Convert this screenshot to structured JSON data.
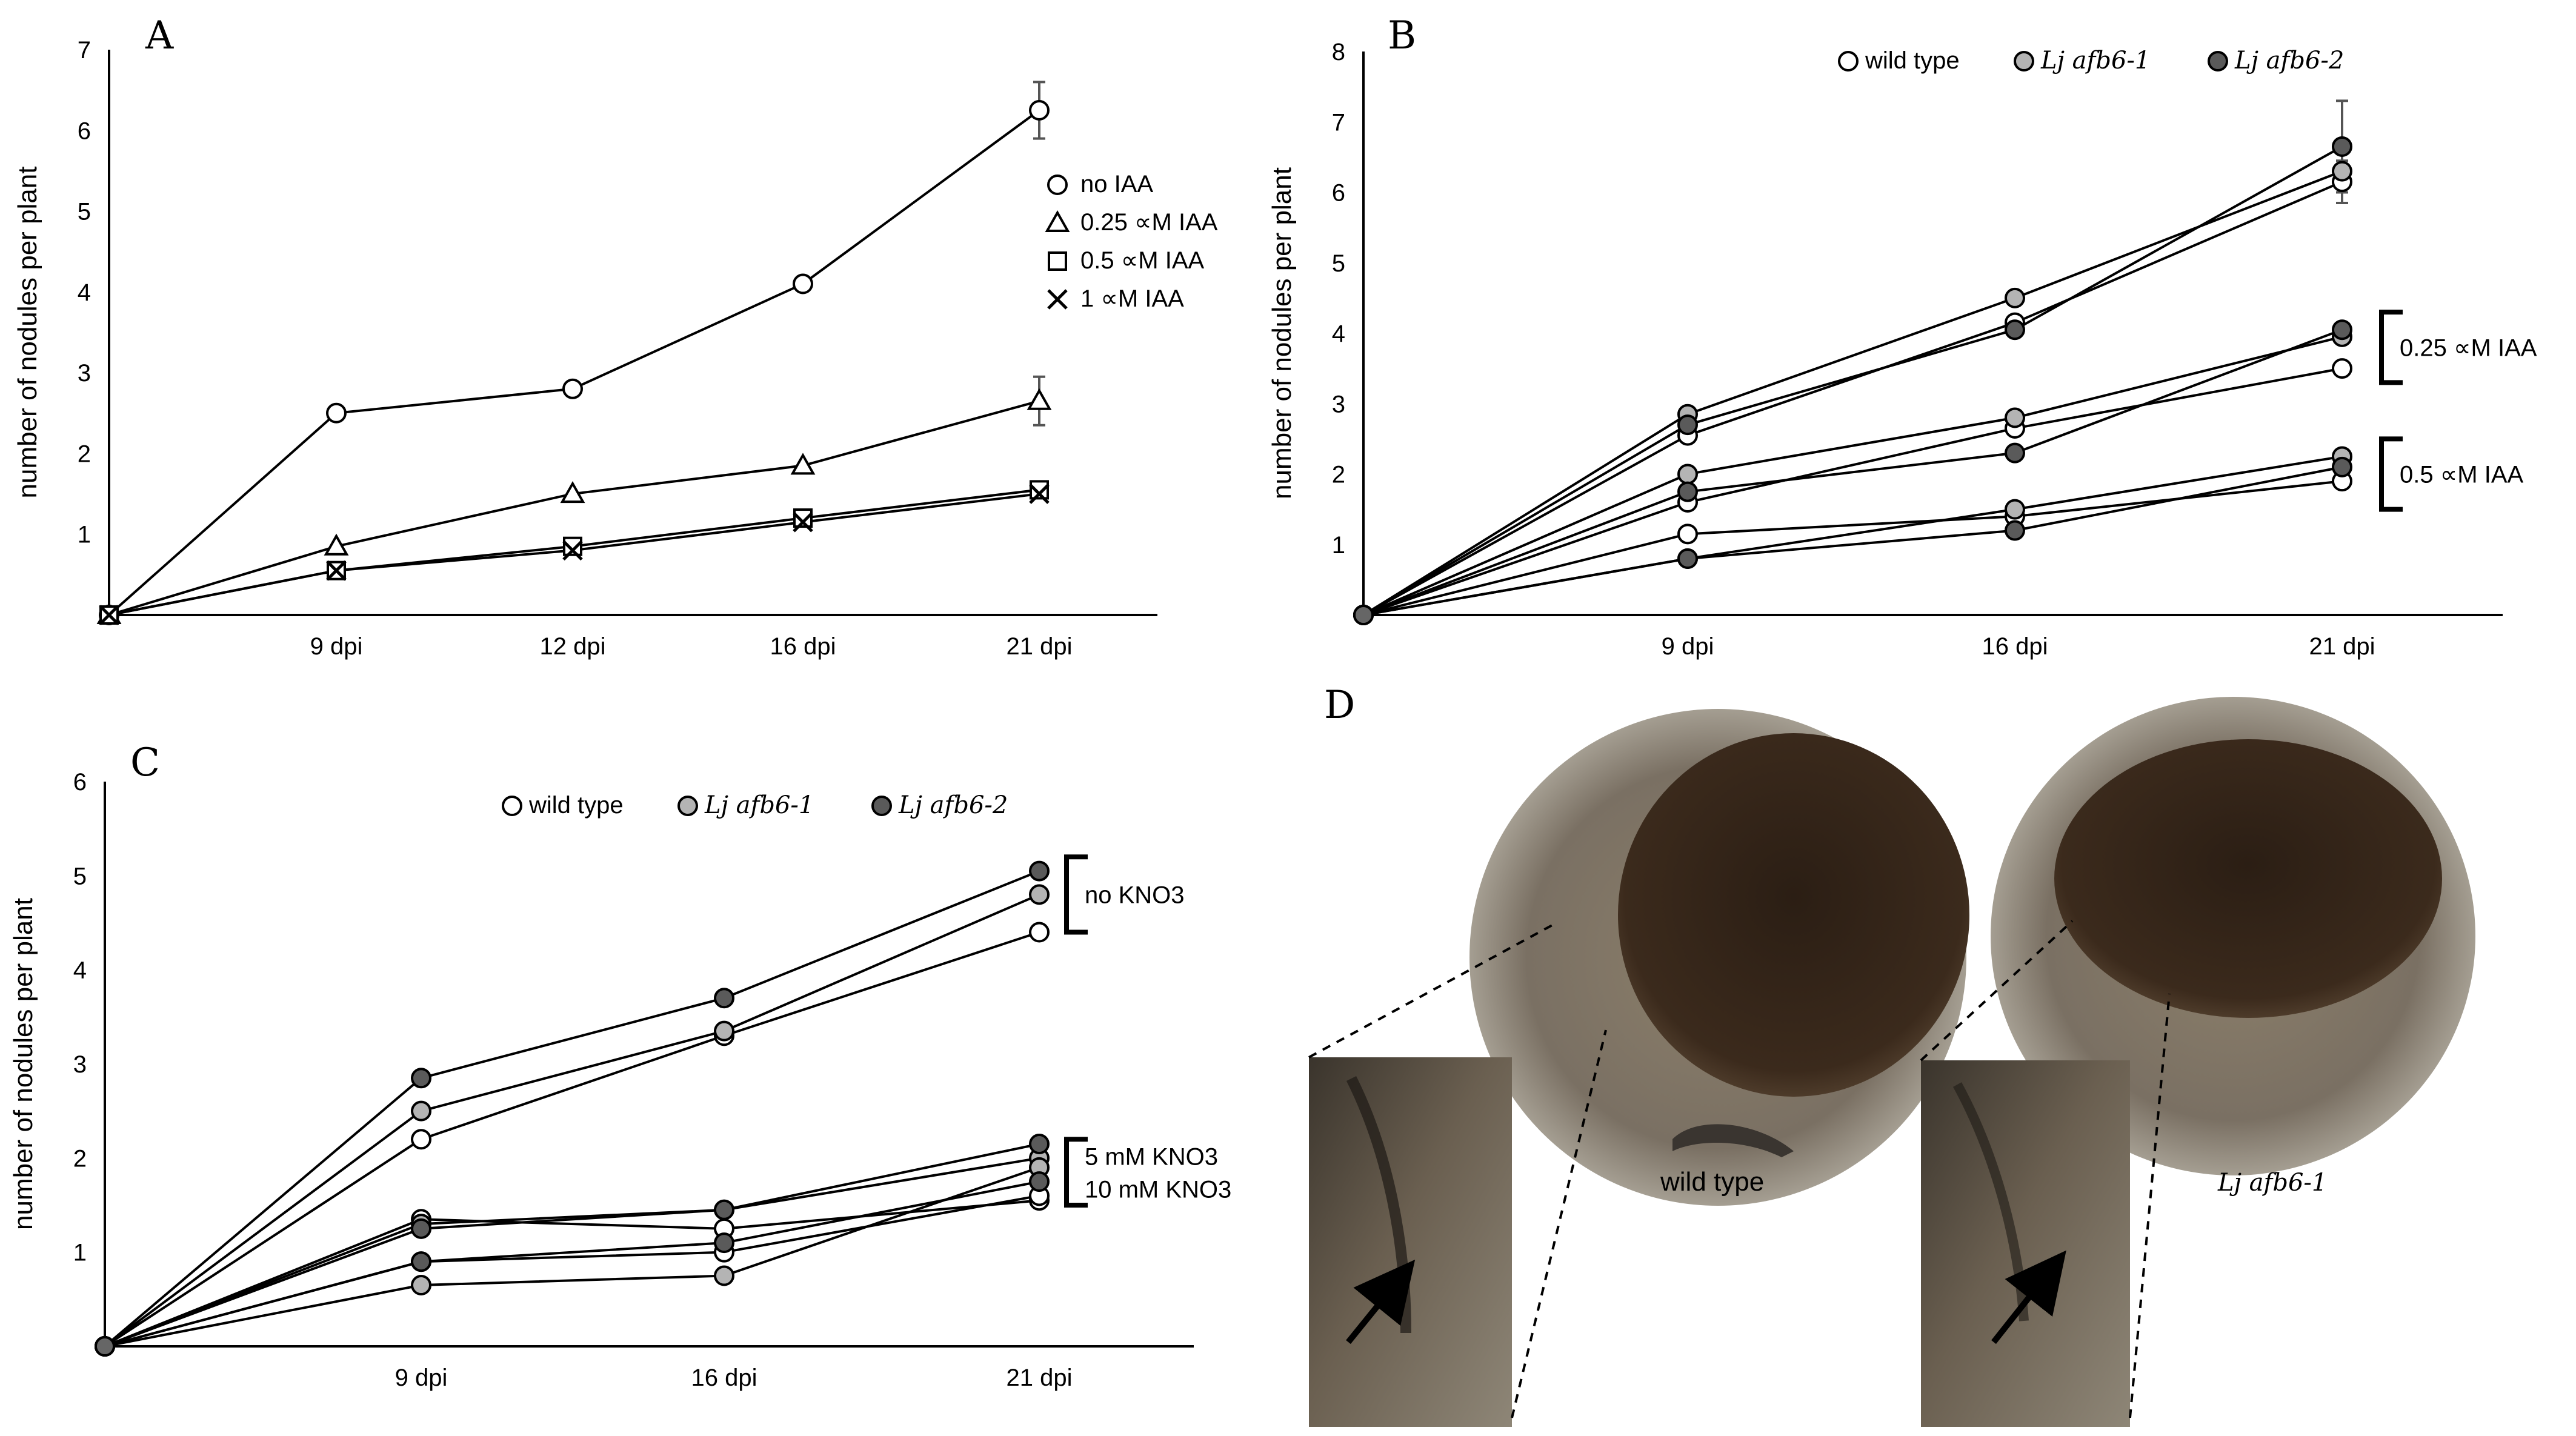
{
  "figure": {
    "panels": {
      "A": "A",
      "B": "B",
      "C": "C",
      "D": "D"
    },
    "captions": {
      "wild_type": "wild type",
      "mutant": "Lj afb6-1"
    }
  },
  "chart_data": [
    {
      "id": "A",
      "type": "line",
      "ylabel": "number of nodules per plant",
      "ylim": [
        0,
        7
      ],
      "yticks": [
        1,
        2,
        3,
        4,
        5,
        6,
        7
      ],
      "x": [
        0,
        9,
        12,
        16,
        21
      ],
      "xticklabels": [
        "9 dpi",
        "12 dpi",
        "16 dpi",
        "21 dpi"
      ],
      "series": [
        {
          "name": "no IAA",
          "marker": "circle",
          "values": [
            0,
            2.5,
            2.8,
            4.1,
            6.25
          ],
          "err": [
            0,
            0,
            0,
            0,
            0.35
          ]
        },
        {
          "name": "0.25 ∝M IAA",
          "marker": "triangle",
          "values": [
            0,
            0.85,
            1.5,
            1.85,
            2.65
          ],
          "err": [
            0,
            0,
            0,
            0,
            0.3
          ]
        },
        {
          "name": "0.5 ∝M IAA",
          "marker": "square",
          "values": [
            0,
            0.55,
            0.85,
            1.2,
            1.55
          ],
          "err": [
            0,
            0,
            0,
            0,
            0
          ]
        },
        {
          "name": "1 ∝M IAA",
          "marker": "x",
          "values": [
            0,
            0.55,
            0.8,
            1.15,
            1.5
          ],
          "err": [
            0,
            0,
            0,
            0,
            0
          ]
        }
      ]
    },
    {
      "id": "B",
      "type": "line",
      "ylabel": "number of nodules per plant",
      "ylim": [
        0,
        8
      ],
      "yticks": [
        1,
        2,
        3,
        4,
        5,
        6,
        7,
        8
      ],
      "x": [
        0,
        9,
        16,
        21
      ],
      "xticklabels": [
        "9 dpi",
        "16 dpi",
        "21 dpi"
      ],
      "legend": [
        {
          "name": "wild type",
          "fill": "#ffffff"
        },
        {
          "name": "Lj afb6-1",
          "fill": "#b4b4b4",
          "italic": true
        },
        {
          "name": "Lj afb6-2",
          "fill": "#5a5a5a",
          "italic": true
        }
      ],
      "brackets": [
        {
          "label": "0.25 ∝M IAA",
          "from": 3.3,
          "to": 4.3
        },
        {
          "label": "0.5 ∝M IAA",
          "from": 1.5,
          "to": 2.5
        }
      ],
      "series": [
        {
          "name": "wild type, no IAA",
          "fill": "#ffffff",
          "values": [
            0,
            2.55,
            4.15,
            6.15
          ],
          "err": 0.3
        },
        {
          "name": "Lj afb6-1, no IAA",
          "fill": "#b4b4b4",
          "values": [
            0,
            2.85,
            4.5,
            6.3
          ],
          "err": 0
        },
        {
          "name": "Lj afb6-2, no IAA",
          "fill": "#5a5a5a",
          "values": [
            0,
            2.7,
            4.05,
            6.65
          ],
          "err": 0.65
        },
        {
          "name": "wild type, 0.25 µM IAA",
          "fill": "#ffffff",
          "values": [
            0,
            1.6,
            2.65,
            3.5
          ]
        },
        {
          "name": "Lj afb6-1, 0.25 µM IAA",
          "fill": "#b4b4b4",
          "values": [
            0,
            2.0,
            2.8,
            3.95
          ]
        },
        {
          "name": "Lj afb6-2, 0.25 µM IAA",
          "fill": "#5a5a5a",
          "values": [
            0,
            1.75,
            2.3,
            4.05
          ]
        },
        {
          "name": "wild type, 0.5 µM IAA",
          "fill": "#ffffff",
          "values": [
            0,
            1.15,
            1.4,
            1.9
          ]
        },
        {
          "name": "Lj afb6-1, 0.5 µM IAA",
          "fill": "#b4b4b4",
          "values": [
            0,
            0.8,
            1.5,
            2.25
          ]
        },
        {
          "name": "Lj afb6-2, 0.5 µM IAA",
          "fill": "#5a5a5a",
          "values": [
            0,
            0.8,
            1.2,
            2.1
          ]
        }
      ]
    },
    {
      "id": "C",
      "type": "line",
      "ylabel": "number of nodules per plant",
      "ylim": [
        0,
        6
      ],
      "yticks": [
        1,
        2,
        3,
        4,
        5,
        6
      ],
      "x": [
        0,
        9,
        16,
        21
      ],
      "xticklabels": [
        "9 dpi",
        "16 dpi",
        "21 dpi"
      ],
      "legend": [
        {
          "name": "wild type",
          "fill": "#ffffff"
        },
        {
          "name": "Lj afb6-1",
          "fill": "#b4b4b4",
          "italic": true
        },
        {
          "name": "Lj afb6-2",
          "fill": "#5a5a5a",
          "italic": true
        }
      ],
      "brackets": [
        {
          "label": "no KNO3",
          "from": 4.4,
          "to": 5.2
        },
        {
          "label": "5 mM KNO3",
          "label2": "10 mM KNO3",
          "from": 1.5,
          "to": 2.2
        }
      ],
      "series": [
        {
          "name": "wild type, no KNO3",
          "fill": "#ffffff",
          "values": [
            0,
            2.2,
            3.3,
            4.4
          ]
        },
        {
          "name": "Lj afb6-1, no KNO3",
          "fill": "#b4b4b4",
          "values": [
            0,
            2.5,
            3.35,
            4.8
          ]
        },
        {
          "name": "Lj afb6-2, no KNO3",
          "fill": "#5a5a5a",
          "values": [
            0,
            2.85,
            3.7,
            5.05
          ]
        },
        {
          "name": "wild type, 5 mM",
          "fill": "#ffffff",
          "values": [
            0,
            1.35,
            1.25,
            1.55
          ]
        },
        {
          "name": "Lj afb6-1, 5 mM",
          "fill": "#b4b4b4",
          "values": [
            0,
            1.3,
            1.45,
            2.0
          ]
        },
        {
          "name": "Lj afb6-2, 5 mM",
          "fill": "#5a5a5a",
          "values": [
            0,
            1.25,
            1.45,
            2.15
          ]
        },
        {
          "name": "wild type, 10 mM",
          "fill": "#ffffff",
          "values": [
            0,
            0.9,
            1.0,
            1.6
          ]
        },
        {
          "name": "Lj afb6-1, 10 mM",
          "fill": "#b4b4b4",
          "values": [
            0,
            0.65,
            0.75,
            1.9
          ]
        },
        {
          "name": "Lj afb6-2, 10 mM",
          "fill": "#5a5a5a",
          "values": [
            0,
            0.9,
            1.1,
            1.75
          ]
        }
      ]
    }
  ]
}
